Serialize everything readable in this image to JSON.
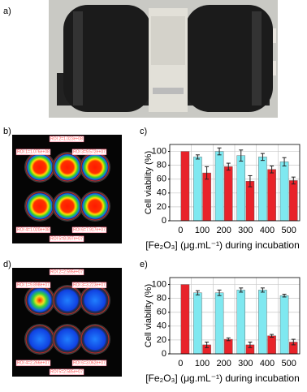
{
  "panel_labels": {
    "a": "a)",
    "b": "b)",
    "d": "d)"
  },
  "images": [
    {
      "rois": [
        "ROI 2=1.023e+08",
        "ROI 1=1.076e+08",
        "ROI 3=9.572e+07",
        "ROI 4=1.020e+08",
        "ROI 6=7.917e+07",
        "ROI 5=8.097e+07"
      ]
    },
    {
      "rois": [
        "ROI 2=2.595e+07",
        "ROI 1=9.898e+07",
        "ROI 3=3.223e+07",
        "ROI 4=2.266e+07",
        "ROI 6=3.062e+07",
        "ROI 5=2.585e+07"
      ]
    }
  ],
  "chart_data": [
    {
      "type": "bar",
      "label": "c)",
      "y_label": "Cell viability (%)",
      "x_label": "[Fe₂O₃] (μg.mL⁻¹) during incubation",
      "categories": [
        "0",
        "100",
        "200",
        "300",
        "400",
        "500"
      ],
      "series": [
        {
          "color": "#7fe8f0",
          "values": [
            null,
            92,
            100,
            94,
            92,
            85
          ],
          "errors": [
            null,
            3,
            5,
            8,
            5,
            6
          ]
        },
        {
          "color": "#e8232a",
          "values": [
            100,
            69,
            78,
            57,
            74,
            58
          ],
          "errors": [
            null,
            9,
            5,
            8,
            5,
            5
          ]
        }
      ],
      "ylim": [
        0,
        110
      ],
      "yticks": [
        0,
        20,
        40,
        60,
        80,
        100
      ],
      "grid": true
    },
    {
      "type": "bar",
      "label": "e)",
      "y_label": "Cell viability (%)",
      "x_label": "[Fe₂O₃] (μg.mL⁻¹) during incubation",
      "categories": [
        "0",
        "100",
        "200",
        "300",
        "400",
        "500"
      ],
      "series": [
        {
          "color": "#7fe8f0",
          "values": [
            null,
            88,
            88,
            92,
            92,
            84
          ],
          "errors": [
            null,
            3,
            4,
            3,
            3,
            2
          ]
        },
        {
          "color": "#e8232a",
          "values": [
            100,
            13,
            21,
            13,
            26,
            17
          ],
          "errors": [
            null,
            4,
            2,
            4,
            2,
            4
          ]
        }
      ],
      "ylim": [
        0,
        110
      ],
      "yticks": [
        0,
        20,
        40,
        60,
        80,
        100
      ],
      "grid": true
    }
  ]
}
